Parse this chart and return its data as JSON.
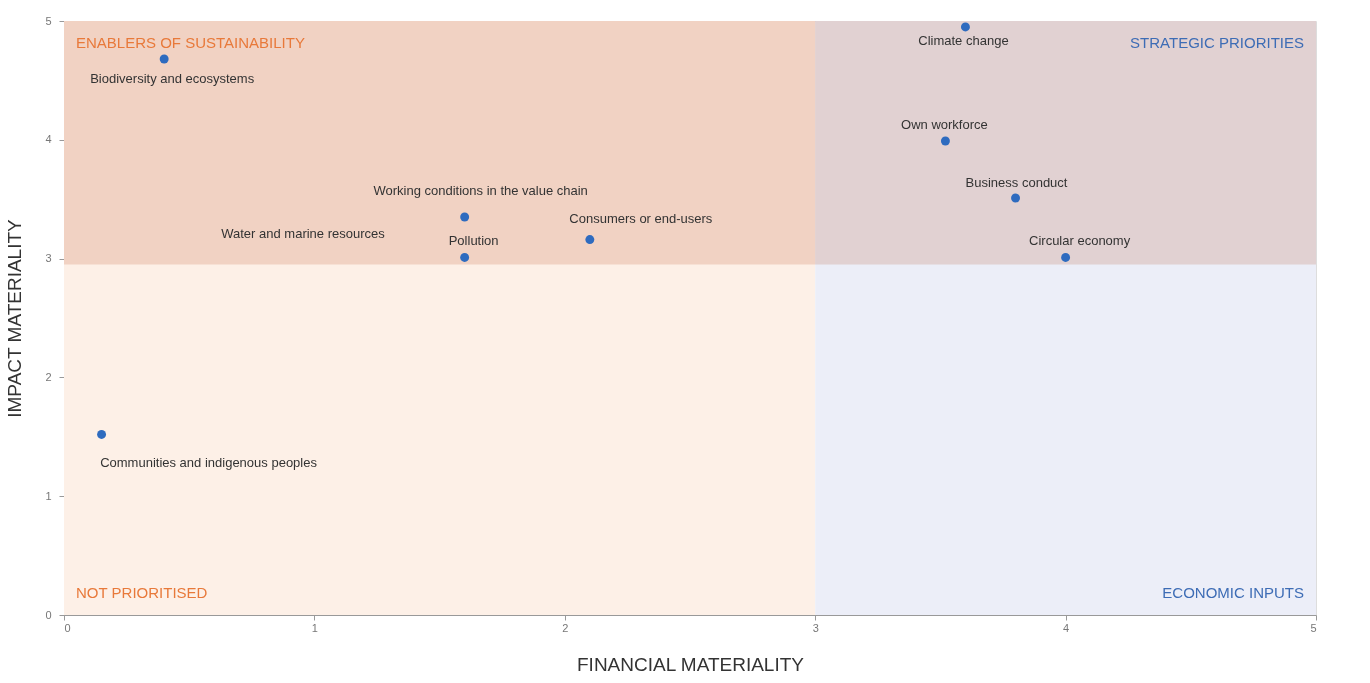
{
  "chart_data": {
    "type": "scatter",
    "xlabel": "FINANCIAL MATERIALITY",
    "ylabel": "IMPACT MATERIALITY",
    "xlim": [
      0,
      5
    ],
    "ylim": [
      0,
      5
    ],
    "xticks": [
      0,
      1,
      2,
      3,
      4,
      5
    ],
    "yticks": [
      0,
      1,
      2,
      3,
      4,
      5
    ],
    "grid": false,
    "marker": "circle",
    "series": [
      {
        "color": "#2e6bbf",
        "x": [
          0.4,
          1.6,
          2.1,
          1.6,
          0.15,
          3.6,
          3.52,
          3.8,
          4.0
        ],
        "values": [
          4.68,
          3.35,
          3.16,
          3.01,
          1.52,
          4.95,
          3.99,
          3.51,
          3.01
        ]
      }
    ],
    "bands": [
      {
        "axis": "x",
        "from": 0,
        "to": 3,
        "color": "#fdf0e7"
      },
      {
        "axis": "x",
        "from": 3,
        "to": 5,
        "color": "#eceef8"
      },
      {
        "axis": "y",
        "from": 2.95,
        "to": 5,
        "color": "#f3e0d8"
      }
    ],
    "annotations": [
      "ENABLERS OF SUSTAINABILITY",
      "STRATEGIC PRIORITIES",
      "NOT PRIORITISED",
      "ECONOMIC INPUTS",
      {
        "text": "Biodiversity and ecosystems",
        "x": 0.4,
        "y": 4.68
      },
      {
        "text": "Working conditions in the value chain",
        "x": 1.6,
        "y": 3.35
      },
      {
        "text": "Consumers or end-users",
        "x": 2.1,
        "y": 3.16
      },
      {
        "text": "Pollution",
        "x": 1.6,
        "y": 3.01
      },
      "Water and marine resources",
      {
        "text": "Communities and indigenous peoples",
        "x": 0.15,
        "y": 1.52
      },
      {
        "text": "Climate change",
        "x": 3.6,
        "y": 4.95
      },
      {
        "text": "Own workforce",
        "x": 3.52,
        "y": 3.99
      },
      {
        "text": "Business conduct",
        "x": 3.8,
        "y": 3.51
      },
      {
        "text": "Circular economy",
        "x": 4.0,
        "y": 3.01
      }
    ]
  }
}
